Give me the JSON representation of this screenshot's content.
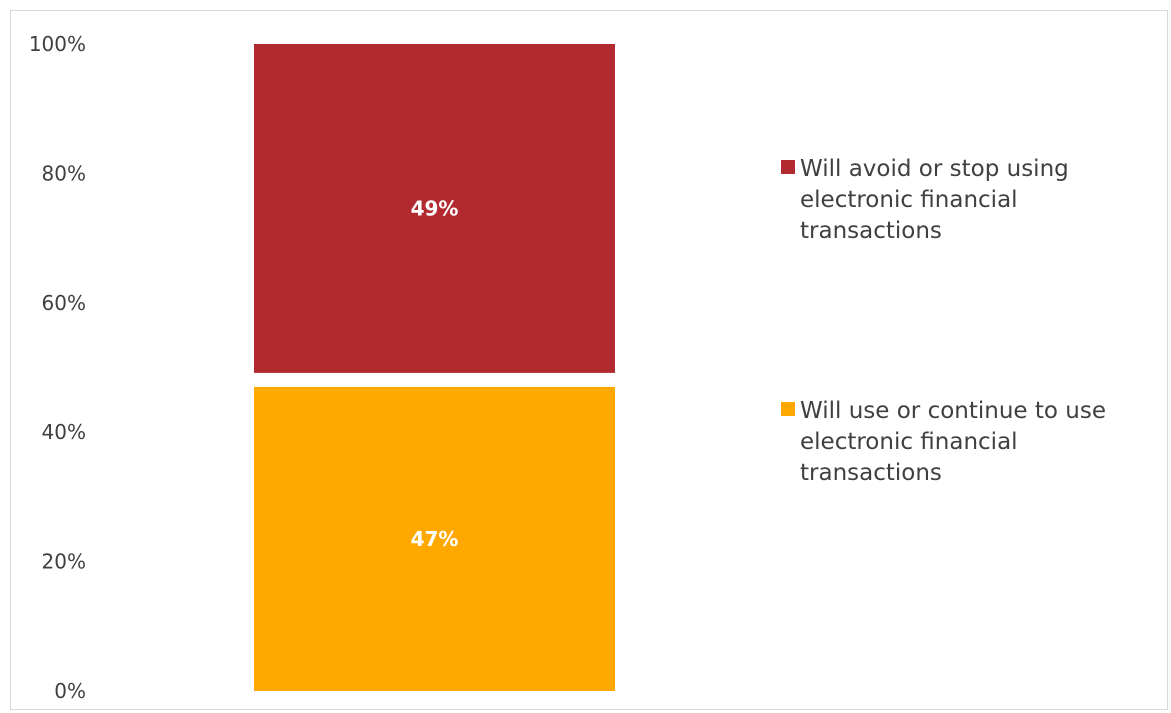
{
  "chart_data": {
    "type": "bar",
    "stacked": true,
    "categories": [
      ""
    ],
    "series": [
      {
        "name": "Will use or continue to use electronic financial transactions",
        "values": [
          47
        ],
        "label": "47%",
        "color": "#FFA800"
      },
      {
        "name": "Will avoid or stop using electronic financial transactions",
        "values": [
          49
        ],
        "label": "49%",
        "color": "#B22A30"
      }
    ],
    "title": "",
    "xlabel": "",
    "ylabel": "",
    "ylim": [
      0,
      100
    ],
    "y_ticks": [
      "0%",
      "20%",
      "40%",
      "60%",
      "80%",
      "100%"
    ],
    "grid": false,
    "legend_position": "right"
  },
  "legend": {
    "items": [
      {
        "label": "Will avoid or stop using electronic financial transactions",
        "color": "#B22A30"
      },
      {
        "label": "Will use or continue to use electronic financial transactions",
        "color": "#FFA800"
      }
    ]
  }
}
